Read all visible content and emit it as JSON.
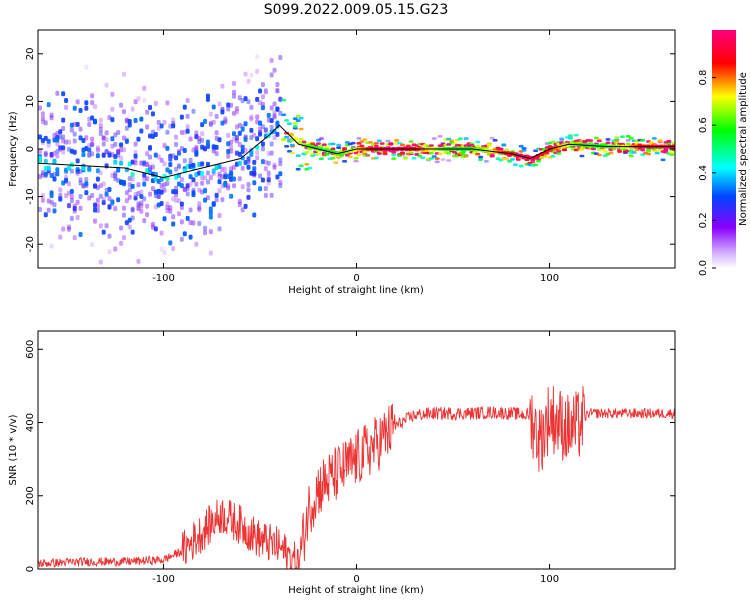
{
  "title": "S099.2022.009.05.15.G23",
  "colors": {
    "snr_line": "#ee3333",
    "ridge_line": "#000000",
    "spectrum_scale": [
      "#ffffff",
      "#8a00ff",
      "#0044ff",
      "#00ffff",
      "#00ff00",
      "#ffff00",
      "#ff0000",
      "#ff0080"
    ]
  },
  "chart_data": [
    {
      "type": "heatmap",
      "xlabel": "Height of straight line (km)",
      "ylabel": "Frequency (Hz)",
      "xlim": [
        -165,
        165
      ],
      "ylim": [
        -25,
        25
      ],
      "xticks": [
        -100,
        0,
        100
      ],
      "yticks": [
        -20,
        -10,
        0,
        10,
        20
      ],
      "grid": false,
      "colorbar": {
        "label": "Normalized spectral amplitude",
        "range": [
          0,
          1
        ],
        "ticks": [
          "0.0",
          "0.2",
          "0.4",
          "0.6",
          "0.8"
        ]
      },
      "ridge": {
        "x": [
          -165,
          -120,
          -100,
          -80,
          -60,
          -45,
          -40,
          -35,
          -30,
          -20,
          -10,
          0,
          20,
          40,
          60,
          80,
          90,
          100,
          110,
          130,
          165
        ],
        "y": [
          -3,
          -4,
          -6,
          -4,
          -2,
          3,
          5,
          3,
          1,
          0,
          -1,
          0,
          0,
          0,
          0,
          -1,
          -2,
          0,
          1,
          0.5,
          0.5
        ]
      }
    },
    {
      "type": "line",
      "xlabel": "Height of straight line (km)",
      "ylabel": "SNR (10 * v/v)",
      "xlim": [
        -165,
        165
      ],
      "ylim": [
        0,
        650
      ],
      "xticks": [
        -100,
        0,
        100
      ],
      "yticks": [
        0,
        200,
        400,
        600
      ],
      "grid": false,
      "x": [
        -165,
        -140,
        -120,
        -100,
        -90,
        -80,
        -70,
        -60,
        -50,
        -40,
        -30,
        -25,
        -20,
        -10,
        0,
        10,
        20,
        30,
        40,
        50,
        60,
        70,
        80,
        90,
        95,
        100,
        110,
        115,
        120,
        140,
        165
      ],
      "y": [
        15,
        20,
        20,
        25,
        50,
        100,
        150,
        120,
        80,
        60,
        10,
        160,
        220,
        260,
        300,
        340,
        390,
        420,
        425,
        425,
        425,
        428,
        425,
        420,
        350,
        420,
        380,
        390,
        425,
        425,
        425
      ]
    }
  ]
}
